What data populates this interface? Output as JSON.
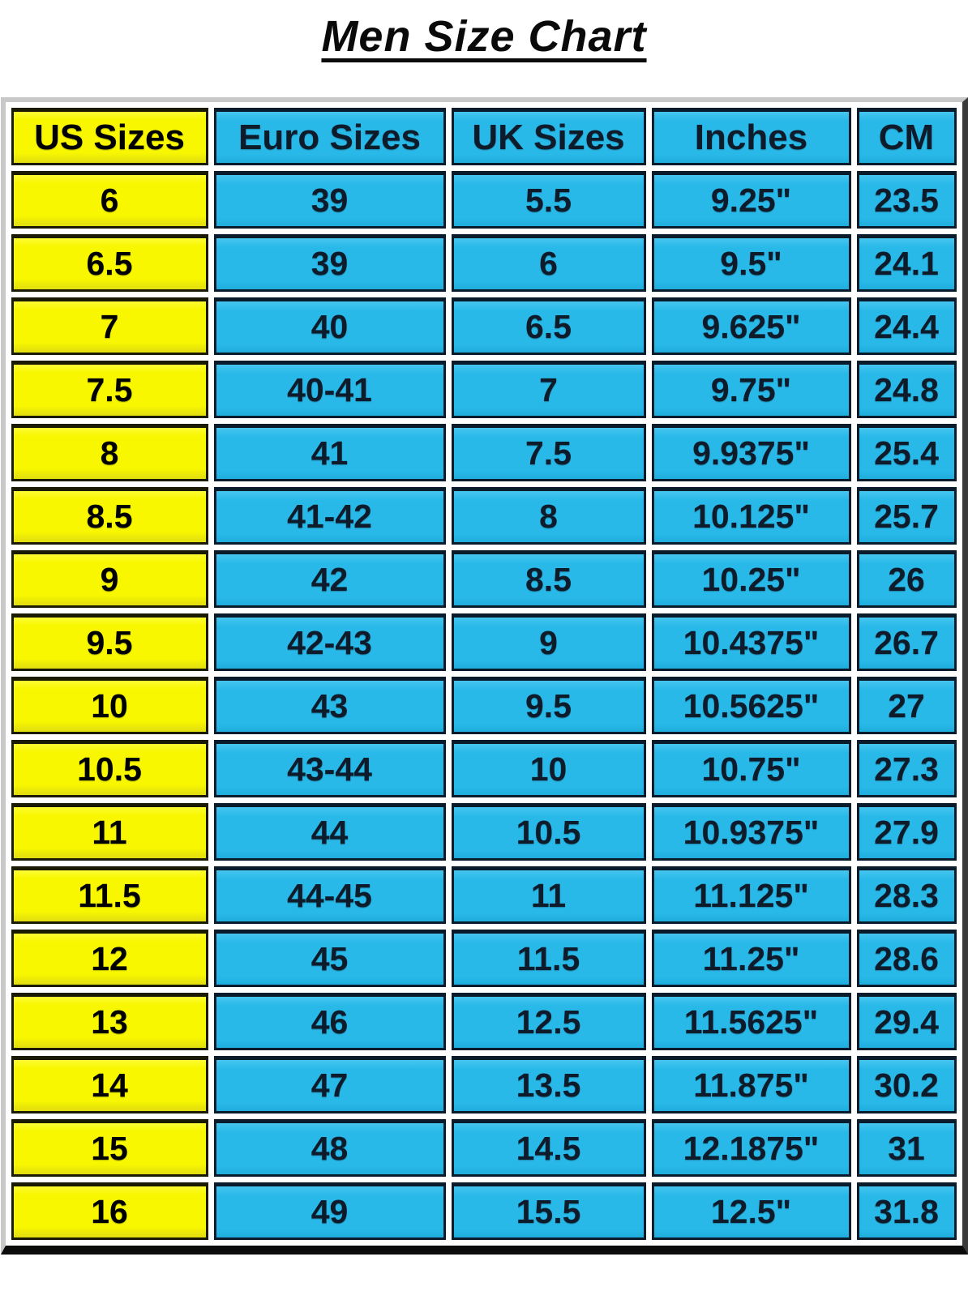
{
  "title": "Men Size Chart",
  "colors": {
    "page_background": "#ffffff",
    "header_yellow": "#f8f700",
    "cell_cyan": "#29b9e9",
    "yellow_text": "#000000",
    "cyan_text": "#0d1b2a",
    "cell_border": "#0d0d12",
    "frame_light": "#c8c8c8",
    "frame_dark": "#0b0b0b"
  },
  "chart_data": {
    "type": "table",
    "title": "Men Size Chart",
    "columns": [
      "US Sizes",
      "Euro Sizes",
      "UK Sizes",
      "Inches",
      "CM"
    ],
    "rows": [
      [
        "6",
        "39",
        "5.5",
        "9.25\"",
        "23.5"
      ],
      [
        "6.5",
        "39",
        "6",
        "9.5\"",
        "24.1"
      ],
      [
        "7",
        "40",
        "6.5",
        "9.625\"",
        "24.4"
      ],
      [
        "7.5",
        "40-41",
        "7",
        "9.75\"",
        "24.8"
      ],
      [
        "8",
        "41",
        "7.5",
        "9.9375\"",
        "25.4"
      ],
      [
        "8.5",
        "41-42",
        "8",
        "10.125\"",
        "25.7"
      ],
      [
        "9",
        "42",
        "8.5",
        "10.25\"",
        "26"
      ],
      [
        "9.5",
        "42-43",
        "9",
        "10.4375\"",
        "26.7"
      ],
      [
        "10",
        "43",
        "9.5",
        "10.5625\"",
        "27"
      ],
      [
        "10.5",
        "43-44",
        "10",
        "10.75\"",
        "27.3"
      ],
      [
        "11",
        "44",
        "10.5",
        "10.9375\"",
        "27.9"
      ],
      [
        "11.5",
        "44-45",
        "11",
        "11.125\"",
        "28.3"
      ],
      [
        "12",
        "45",
        "11.5",
        "11.25\"",
        "28.6"
      ],
      [
        "13",
        "46",
        "12.5",
        "11.5625\"",
        "29.4"
      ],
      [
        "14",
        "47",
        "13.5",
        "11.875\"",
        "30.2"
      ],
      [
        "15",
        "48",
        "14.5",
        "12.1875\"",
        "31"
      ],
      [
        "16",
        "49",
        "15.5",
        "12.5\"",
        "31.8"
      ]
    ],
    "layout": {
      "highlighted_column": "US Sizes",
      "grid": "visible",
      "legend": "none"
    }
  }
}
